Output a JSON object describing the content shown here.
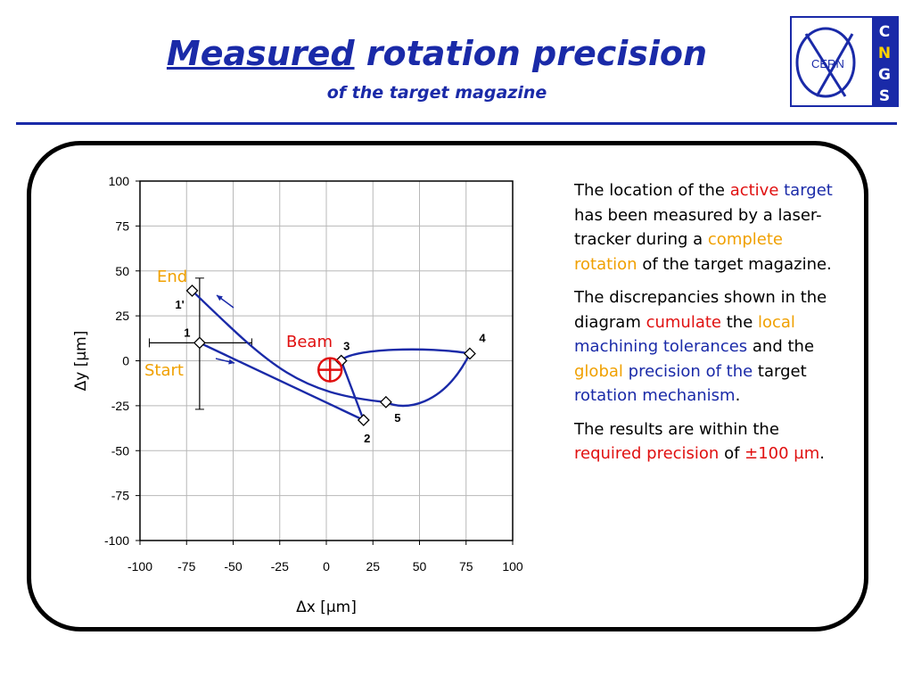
{
  "slide": {
    "title_underlined": "Measured",
    "title_rest": " rotation precision",
    "subtitle": "of the target magazine"
  },
  "logo": {
    "text": "CERN",
    "letters": [
      "C",
      "N",
      "G",
      "S"
    ],
    "colors": {
      "frame": "#1a2aa8",
      "stripe": "#ffd200"
    }
  },
  "text_block": {
    "p1": [
      {
        "t": "The location of the ",
        "c": ""
      },
      {
        "t": "active target",
        "c": "mix_at"
      },
      {
        "t": " has been measured by a laser-tracker during a ",
        "c": ""
      },
      {
        "t": "complete rotation",
        "c": "orange"
      },
      {
        "t": " of the target magazine.",
        "c": ""
      }
    ],
    "p2": [
      {
        "t": "The discrepancies shown in the diagram ",
        "c": ""
      },
      {
        "t": "cumulate",
        "c": "red"
      },
      {
        "t": " the ",
        "c": ""
      },
      {
        "t": "local",
        "c": "orange"
      },
      {
        "t": " ",
        "c": ""
      },
      {
        "t": "machining tolerances",
        "c": "blue"
      },
      {
        "t": " and the ",
        "c": ""
      },
      {
        "t": "global",
        "c": "orange"
      },
      {
        "t": " ",
        "c": ""
      },
      {
        "t": "precision of the",
        "c": "blue"
      },
      {
        "t": " target ",
        "c": ""
      },
      {
        "t": "rotation mechanism",
        "c": "blue"
      },
      {
        "t": ".",
        "c": ""
      }
    ],
    "p3": [
      {
        "t": "The results are within the ",
        "c": ""
      },
      {
        "t": "required precision",
        "c": "red"
      },
      {
        "t": " of ",
        "c": ""
      },
      {
        "t": "±100 µm",
        "c": "red"
      },
      {
        "t": ".",
        "c": ""
      }
    ]
  },
  "chart_data": {
    "type": "scatter",
    "xlabel": "Δx [µm]",
    "ylabel": "Δy [µm]",
    "xlim": [
      -100,
      100
    ],
    "ylim": [
      -100,
      100
    ],
    "xticks": [
      "-100",
      "-75",
      "-50",
      "-25",
      "0",
      "25",
      "50",
      "75",
      "100"
    ],
    "yticks": [
      "100",
      "75",
      "50",
      "25",
      "0",
      "-25",
      "-50",
      "-75",
      "-100"
    ],
    "grid": true,
    "points": [
      {
        "label": "1",
        "x": -68,
        "y": 10
      },
      {
        "label": "2",
        "x": 20,
        "y": -33
      },
      {
        "label": "3",
        "x": 8,
        "y": 0
      },
      {
        "label": "4",
        "x": 77,
        "y": 4
      },
      {
        "label": "5",
        "x": 32,
        "y": -23
      },
      {
        "label": "1'",
        "x": -72,
        "y": 39
      }
    ],
    "error_bar": {
      "x": -68,
      "y": 10,
      "x_range": [
        -95,
        -40
      ],
      "y_range": [
        -27,
        46
      ]
    },
    "beam": {
      "label": "Beam",
      "x": 2,
      "y": -5
    },
    "annotations": {
      "start": "Start",
      "end": "End"
    },
    "colors": {
      "line": "#1a2aa8",
      "beam": "#e01010",
      "annot": "#f0a000"
    }
  }
}
